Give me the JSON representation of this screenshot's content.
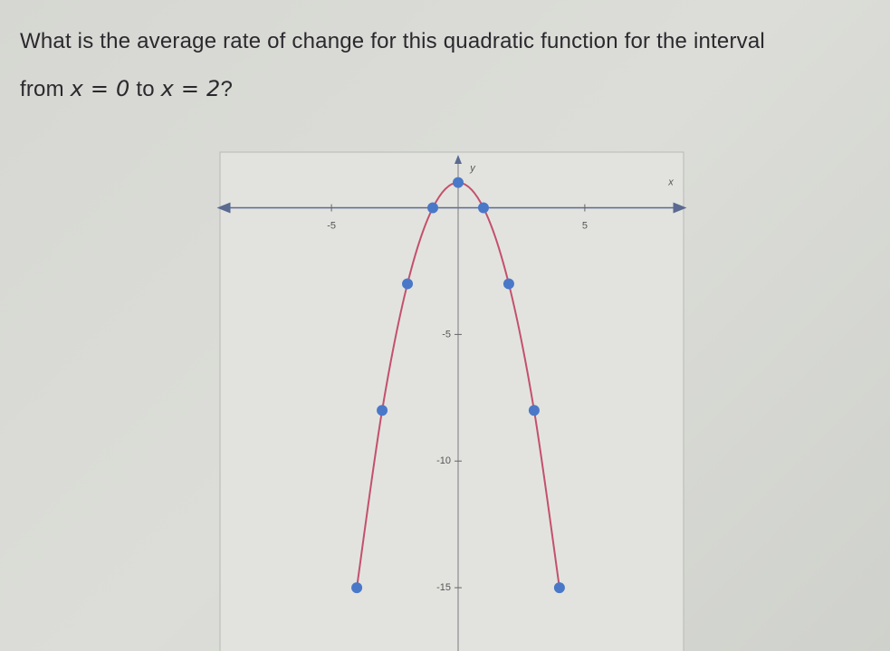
{
  "question": {
    "line1": "What is the average rate of change for this quadratic function for the interval",
    "line2": [
      "from ",
      "x = 0",
      " to ",
      "x = 2",
      "?"
    ]
  },
  "chart_data": {
    "type": "line",
    "x_label": "x",
    "y_label": "y",
    "x": [
      -4,
      -3,
      -2,
      -1,
      0,
      1,
      2,
      3,
      4
    ],
    "series": [
      {
        "values": [
          -15,
          -8,
          -3,
          0,
          1,
          0,
          -3,
          -8,
          -15
        ],
        "color": "#c4506c",
        "marker_color": "#4a78c8"
      }
    ],
    "xlim": [
      -9.4,
      8.9
    ],
    "ylim": [
      -17.5,
      2.2
    ],
    "xticks": [
      -5,
      5
    ],
    "yticks": [
      -5,
      -10,
      -15
    ]
  }
}
